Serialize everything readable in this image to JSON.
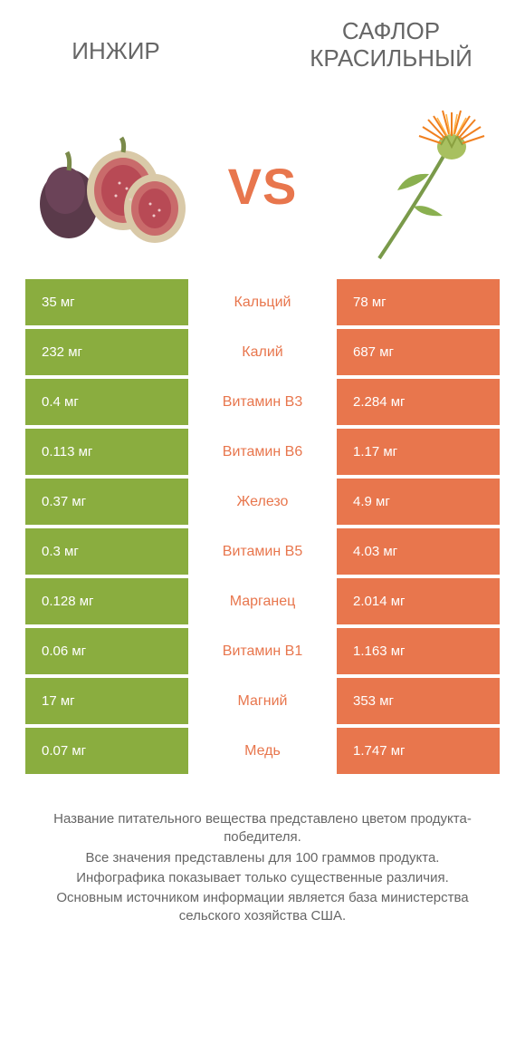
{
  "colors": {
    "left": "#8aad3f",
    "right": "#e8764d",
    "label_text": "#e8764d",
    "title_text": "#666666",
    "vs_text": "#e8764d",
    "value_text": "#ffffff"
  },
  "titles": {
    "left": "ИНЖИР",
    "right": "САФЛОР КРАСИЛЬНЫЙ",
    "vs": "VS"
  },
  "rows": [
    {
      "left": "35 мг",
      "label": "Кальций",
      "right": "78 мг"
    },
    {
      "left": "232 мг",
      "label": "Калий",
      "right": "687 мг"
    },
    {
      "left": "0.4 мг",
      "label": "Витамин B3",
      "right": "2.284 мг"
    },
    {
      "left": "0.113 мг",
      "label": "Витамин B6",
      "right": "1.17 мг"
    },
    {
      "left": "0.37 мг",
      "label": "Железо",
      "right": "4.9 мг"
    },
    {
      "left": "0.3 мг",
      "label": "Витамин B5",
      "right": "4.03 мг"
    },
    {
      "left": "0.128 мг",
      "label": "Марганец",
      "right": "2.014 мг"
    },
    {
      "left": "0.06 мг",
      "label": "Витамин B1",
      "right": "1.163 мг"
    },
    {
      "left": "17 мг",
      "label": "Магний",
      "right": "353 мг"
    },
    {
      "left": "0.07 мг",
      "label": "Медь",
      "right": "1.747 мг"
    }
  ],
  "footer": [
    "Название питательного вещества представлено цветом продукта-победителя.",
    "Все значения представлены для 100 граммов продукта.",
    "Инфографика показывает только существенные различия.",
    "Основным источником информации является база министерства сельского хозяйства США."
  ]
}
